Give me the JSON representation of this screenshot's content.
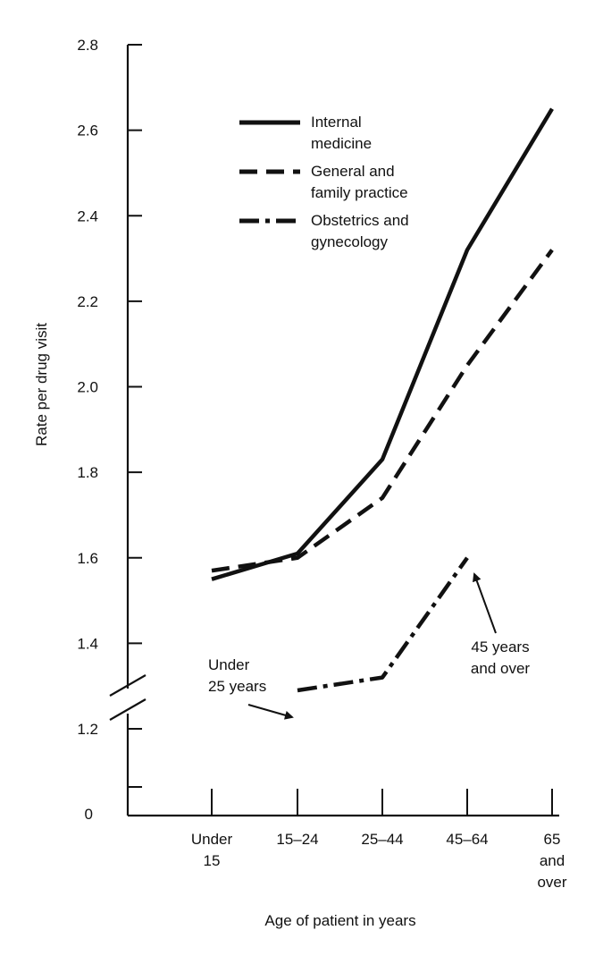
{
  "chart_data": {
    "type": "line",
    "xlabel": "Age of patient in years",
    "ylabel": "Rate per drug visit",
    "categories": [
      "Under 15",
      "15–24",
      "25–44",
      "45–64",
      "65 and over"
    ],
    "category_lines": [
      [
        "Under",
        "15"
      ],
      [
        "15–24"
      ],
      [
        "25–44"
      ],
      [
        "45–64"
      ],
      [
        "65",
        "and",
        "over"
      ]
    ],
    "y_ticks": [
      "1.2",
      "1.4",
      "1.6",
      "1.8",
      "2.0",
      "2.2",
      "2.4",
      "2.6",
      "2.8"
    ],
    "y_zero_label": "0",
    "ylim": [
      1.1,
      2.8
    ],
    "axis_break": true,
    "grid": false,
    "legend_position": "top",
    "series": [
      {
        "name": "Internal medicine",
        "name_lines": [
          "Internal",
          "medicine"
        ],
        "style": "solid",
        "values": [
          1.55,
          1.61,
          1.83,
          2.32,
          2.65
        ]
      },
      {
        "name": "General and family practice",
        "name_lines": [
          "General and",
          "family practice"
        ],
        "style": "dashed",
        "values": [
          1.57,
          1.6,
          1.74,
          2.05,
          2.32
        ]
      },
      {
        "name": "Obstetrics and gynecology",
        "name_lines": [
          "Obstetrics and",
          "gynecology"
        ],
        "style": "dashdot",
        "values": [
          null,
          1.29,
          1.32,
          1.6,
          null
        ]
      }
    ],
    "annotations": [
      {
        "lines": [
          "Under",
          "25 years"
        ],
        "points_to_category": "15–24",
        "series": "Obstetrics and gynecology"
      },
      {
        "lines": [
          "45 years",
          "and over"
        ],
        "points_to_category": "45–64",
        "series": "Obstetrics and gynecology"
      }
    ]
  }
}
